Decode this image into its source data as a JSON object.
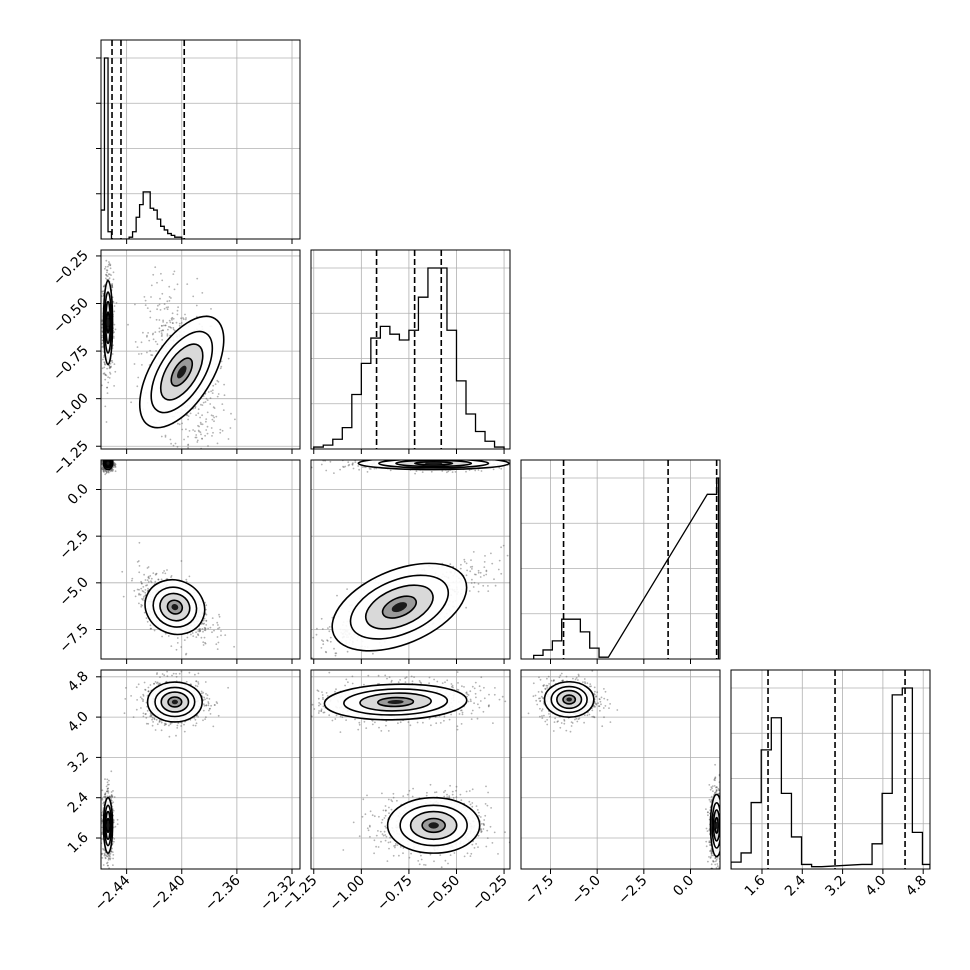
{
  "chart_data": {
    "type": "corner",
    "grid": true,
    "parameters": [
      {
        "range": [
          -2.4586,
          -2.3142
        ],
        "ticks": [
          -2.44,
          -2.4,
          -2.36,
          -2.32
        ],
        "tick_labels": [
          "−2.44",
          "−2.40",
          "−2.36",
          "−2.32"
        ],
        "quantiles": [
          -2.4506,
          -2.4441,
          -2.3982
        ]
      },
      {
        "range": [
          -1.2645,
          -0.2188
        ],
        "ticks": [
          -1.25,
          -1.0,
          -0.75,
          -0.5,
          -0.25
        ],
        "tick_labels": [
          "−1.25",
          "−1.00",
          "−0.75",
          "−0.50",
          "−0.25"
        ],
        "quantiles": [
          -0.92,
          -0.72,
          -0.58
        ]
      },
      {
        "range": [
          -9.08,
          1.58
        ],
        "ticks": [
          -7.5,
          -5.0,
          -2.5,
          0.0
        ],
        "tick_labels": [
          "−7.5",
          "−5.0",
          "−2.5",
          "0.0"
        ],
        "quantiles": [
          -6.8,
          -1.2,
          1.4
        ]
      },
      {
        "range": [
          0.985,
          4.935
        ],
        "ticks": [
          1.6,
          2.4,
          3.2,
          4.0,
          4.8
        ],
        "tick_labels": [
          "1.6",
          "2.4",
          "3.2",
          "4.0",
          "4.8"
        ],
        "quantiles": [
          1.72,
          3.05,
          4.44
        ]
      }
    ],
    "histograms": [
      [
        [
          -2.4586,
          -2.4561,
          0.16
        ],
        [
          -2.4561,
          -2.4535,
          1.0
        ],
        [
          -2.4535,
          -2.451,
          0.04
        ],
        [
          -2.451,
          -2.4484,
          0.0
        ],
        [
          -2.4484,
          -2.4459,
          0.0
        ],
        [
          -2.4459,
          -2.4433,
          0.0
        ],
        [
          -2.4433,
          -2.4408,
          0.0
        ],
        [
          -2.4408,
          -2.4382,
          0.0
        ],
        [
          -2.4382,
          -2.4357,
          0.01
        ],
        [
          -2.4357,
          -2.4331,
          0.04
        ],
        [
          -2.4331,
          -2.4306,
          0.12
        ],
        [
          -2.4306,
          -2.428,
          0.19
        ],
        [
          -2.428,
          -2.4255,
          0.26
        ],
        [
          -2.4255,
          -2.4229,
          0.26
        ],
        [
          -2.4229,
          -2.4204,
          0.17
        ],
        [
          -2.4204,
          -2.4178,
          0.16
        ],
        [
          -2.4178,
          -2.4153,
          0.11
        ],
        [
          -2.4153,
          -2.4127,
          0.07
        ],
        [
          -2.4127,
          -2.4102,
          0.05
        ],
        [
          -2.4102,
          -2.4076,
          0.03
        ],
        [
          -2.4076,
          -2.4051,
          0.02
        ],
        [
          -2.4051,
          -2.4025,
          0.01
        ],
        [
          -2.4025,
          -2.4,
          0.01
        ],
        [
          -2.4,
          -2.3974,
          0.0
        ]
      ],
      [
        [
          -1.25,
          -1.2,
          0.01
        ],
        [
          -1.2,
          -1.15,
          0.02
        ],
        [
          -1.15,
          -1.1,
          0.05
        ],
        [
          -1.1,
          -1.05,
          0.11
        ],
        [
          -1.05,
          -1.0,
          0.28
        ],
        [
          -1.0,
          -0.95,
          0.44
        ],
        [
          -0.95,
          -0.9,
          0.57
        ],
        [
          -0.9,
          -0.85,
          0.63
        ],
        [
          -0.85,
          -0.8,
          0.59
        ],
        [
          -0.8,
          -0.75,
          0.56
        ],
        [
          -0.75,
          -0.7,
          0.61
        ],
        [
          -0.7,
          -0.65,
          0.78
        ],
        [
          -0.65,
          -0.6,
          0.93
        ],
        [
          -0.6,
          -0.55,
          0.93
        ],
        [
          -0.55,
          -0.5,
          0.61
        ],
        [
          -0.5,
          -0.45,
          0.35
        ],
        [
          -0.45,
          -0.4,
          0.18
        ],
        [
          -0.4,
          -0.35,
          0.09
        ],
        [
          -0.35,
          -0.3,
          0.04
        ],
        [
          -0.3,
          -0.25,
          0.01
        ]
      ],
      [
        [
          -8.4,
          -7.9,
          0.02
        ],
        [
          -7.9,
          -7.4,
          0.05
        ],
        [
          -7.4,
          -6.9,
          0.1
        ],
        [
          -6.9,
          -6.4,
          0.22
        ],
        [
          -6.4,
          -5.9,
          0.22
        ],
        [
          -5.9,
          -5.4,
          0.15
        ],
        [
          -5.4,
          -4.9,
          0.06
        ],
        [
          -4.9,
          -4.4,
          0.01
        ],
        [
          0.9,
          1.4,
          0.91
        ],
        [
          1.4,
          1.5,
          1.0
        ]
      ],
      [
        [
          0.985,
          1.185,
          0.03
        ],
        [
          1.185,
          1.385,
          0.07
        ],
        [
          1.385,
          1.585,
          0.29
        ],
        [
          1.585,
          1.785,
          0.52
        ],
        [
          1.785,
          1.985,
          0.66
        ],
        [
          1.985,
          2.185,
          0.33
        ],
        [
          2.185,
          2.385,
          0.14
        ],
        [
          2.385,
          2.585,
          0.02
        ],
        [
          2.585,
          2.785,
          0.01
        ],
        [
          3.585,
          3.785,
          0.02
        ],
        [
          3.785,
          3.985,
          0.11
        ],
        [
          3.985,
          4.185,
          0.33
        ],
        [
          4.185,
          4.385,
          0.76
        ],
        [
          4.385,
          4.585,
          0.79
        ],
        [
          4.585,
          4.785,
          0.16
        ],
        [
          4.785,
          4.935,
          0.02
        ]
      ]
    ],
    "clusters": [
      {
        "pair": [
          1,
          0
        ],
        "x": -2.4535,
        "y": -0.6,
        "sx": 0.0015,
        "sy": 0.1,
        "rho": 0.0
      },
      {
        "pair": [
          1,
          0
        ],
        "x": -2.4,
        "y": -0.86,
        "sx": 0.01,
        "sy": 0.15,
        "rho": -0.3
      },
      {
        "pair": [
          2,
          0
        ],
        "x": -2.4535,
        "y": 1.4,
        "sx": 0.0015,
        "sy": 0.15,
        "rho": 0.0
      },
      {
        "pair": [
          2,
          0
        ],
        "x": -2.405,
        "y": -6.3,
        "sx": 0.01,
        "sy": 0.65,
        "rho": -0.5
      },
      {
        "pair": [
          2,
          1
        ],
        "x": -0.62,
        "y": 1.4,
        "sx": 0.18,
        "sy": 0.15,
        "rho": 0.0
      },
      {
        "pair": [
          2,
          1
        ],
        "x": -0.8,
        "y": -6.3,
        "sx": 0.17,
        "sy": 0.9,
        "rho": 0.8
      },
      {
        "pair": [
          3,
          0
        ],
        "x": -2.4535,
        "y": 1.85,
        "sx": 0.0015,
        "sy": 0.25,
        "rho": 0.0
      },
      {
        "pair": [
          3,
          0
        ],
        "x": -2.405,
        "y": 4.3,
        "sx": 0.009,
        "sy": 0.18,
        "rho": 0.0
      },
      {
        "pair": [
          3,
          1
        ],
        "x": -0.82,
        "y": 4.3,
        "sx": 0.17,
        "sy": 0.16,
        "rho": 0.1
      },
      {
        "pair": [
          3,
          1
        ],
        "x": -0.62,
        "y": 1.85,
        "sx": 0.11,
        "sy": 0.25,
        "rho": 0.0
      },
      {
        "pair": [
          3,
          2
        ],
        "x": -6.5,
        "y": 4.35,
        "sx": 0.6,
        "sy": 0.16,
        "rho": 0.0
      },
      {
        "pair": [
          3,
          2
        ],
        "x": 1.4,
        "y": 1.85,
        "sx": 0.15,
        "sy": 0.28,
        "rho": 0.0
      }
    ]
  }
}
